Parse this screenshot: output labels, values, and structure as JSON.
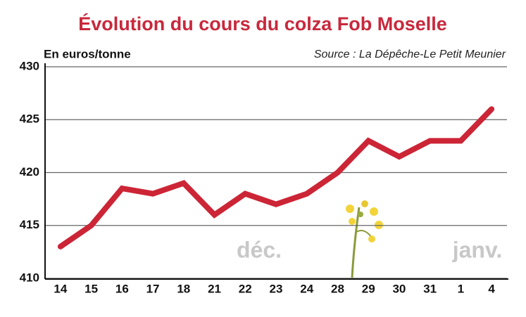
{
  "chart_data": {
    "type": "line",
    "title": "Évolution du cours du colza Fob Moselle",
    "y_label": "En euros/tonne",
    "source": "Source : La Dépêche-Le Petit Meunier",
    "annotations": [
      "déc.",
      "janv."
    ],
    "categories": [
      "14",
      "15",
      "16",
      "17",
      "18",
      "21",
      "22",
      "23",
      "24",
      "28",
      "29",
      "30",
      "31",
      "1",
      "4"
    ],
    "values": [
      413,
      415,
      418.5,
      418,
      419,
      416,
      418,
      417,
      418,
      420,
      423,
      421.5,
      423,
      423,
      426
    ],
    "color": "#cc2536",
    "ylim": [
      410,
      430
    ],
    "yticks": [
      410,
      415,
      420,
      425,
      430
    ],
    "grid": true
  }
}
